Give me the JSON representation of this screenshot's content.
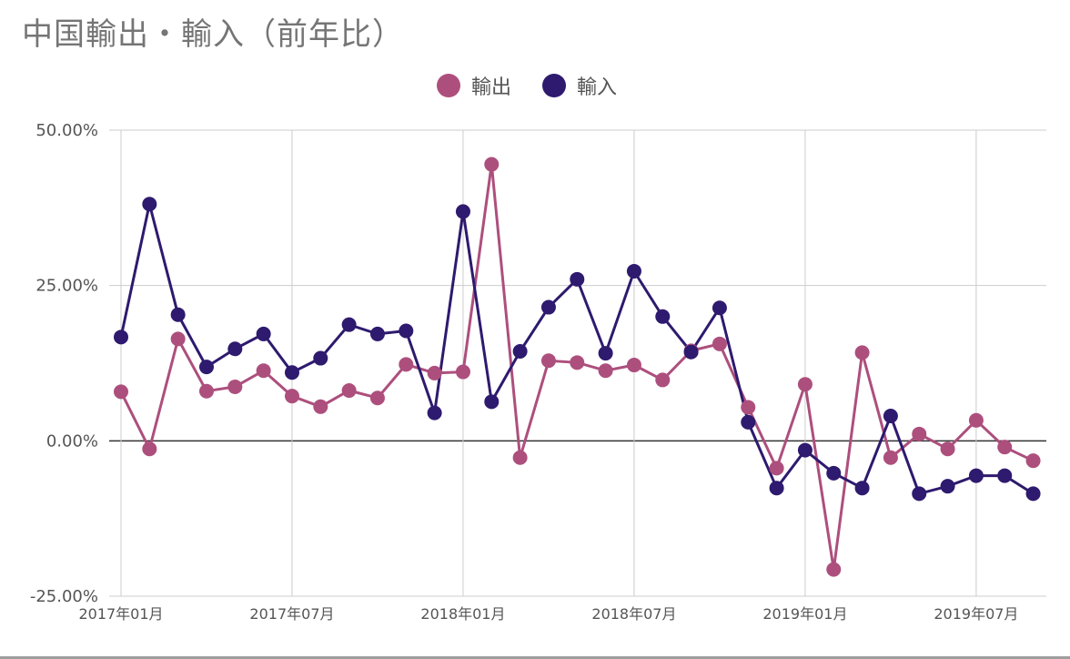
{
  "title": "中国輸出・輸入（前年比）",
  "legend": [
    {
      "label": "輸出",
      "color": "#ad4f7d"
    },
    {
      "label": "輸入",
      "color": "#2e1a6e"
    }
  ],
  "chart_data": {
    "type": "line",
    "title": "中国輸出・輸入（前年比）",
    "xlabel": "",
    "ylabel": "",
    "ylim": [
      -25,
      50
    ],
    "y_ticks": [
      "50.00%",
      "25.00%",
      "0.00%",
      "-25.00%"
    ],
    "y_tick_values": [
      50,
      25,
      0,
      -25
    ],
    "x_tick_labels": [
      "2017年01月",
      "2017年07月",
      "2018年01月",
      "2018年07月",
      "2019年01月",
      "2019年07月"
    ],
    "x_tick_indices": [
      0,
      6,
      12,
      18,
      24,
      30
    ],
    "grid": true,
    "legend_position": "top-center",
    "x": [
      "2017-01",
      "2017-02",
      "2017-03",
      "2017-04",
      "2017-05",
      "2017-06",
      "2017-07",
      "2017-08",
      "2017-09",
      "2017-10",
      "2017-11",
      "2017-12",
      "2018-01",
      "2018-02",
      "2018-03",
      "2018-04",
      "2018-05",
      "2018-06",
      "2018-07",
      "2018-08",
      "2018-09",
      "2018-10",
      "2018-11",
      "2018-12",
      "2019-01",
      "2019-02",
      "2019-03",
      "2019-04",
      "2019-05",
      "2019-06",
      "2019-07",
      "2019-08",
      "2019-09"
    ],
    "series": [
      {
        "name": "輸出",
        "color": "#ad4f7d",
        "values": [
          7.9,
          -1.3,
          16.4,
          8.0,
          8.7,
          11.3,
          7.2,
          5.5,
          8.1,
          6.9,
          12.3,
          10.9,
          11.1,
          44.5,
          -2.7,
          12.9,
          12.6,
          11.3,
          12.2,
          9.8,
          14.5,
          15.6,
          5.4,
          -4.4,
          9.1,
          -20.7,
          14.2,
          -2.7,
          1.1,
          -1.3,
          3.3,
          -1.0,
          -3.2
        ]
      },
      {
        "name": "輸入",
        "color": "#2e1a6e",
        "values": [
          16.7,
          38.1,
          20.3,
          11.9,
          14.8,
          17.2,
          11.0,
          13.3,
          18.7,
          17.2,
          17.7,
          4.5,
          36.9,
          6.3,
          14.4,
          21.5,
          26.0,
          14.1,
          27.3,
          20.0,
          14.3,
          21.4,
          3.0,
          -7.6,
          -1.5,
          -5.2,
          -7.6,
          4.0,
          -8.5,
          -7.3,
          -5.6,
          -5.6,
          -8.5
        ]
      }
    ]
  }
}
